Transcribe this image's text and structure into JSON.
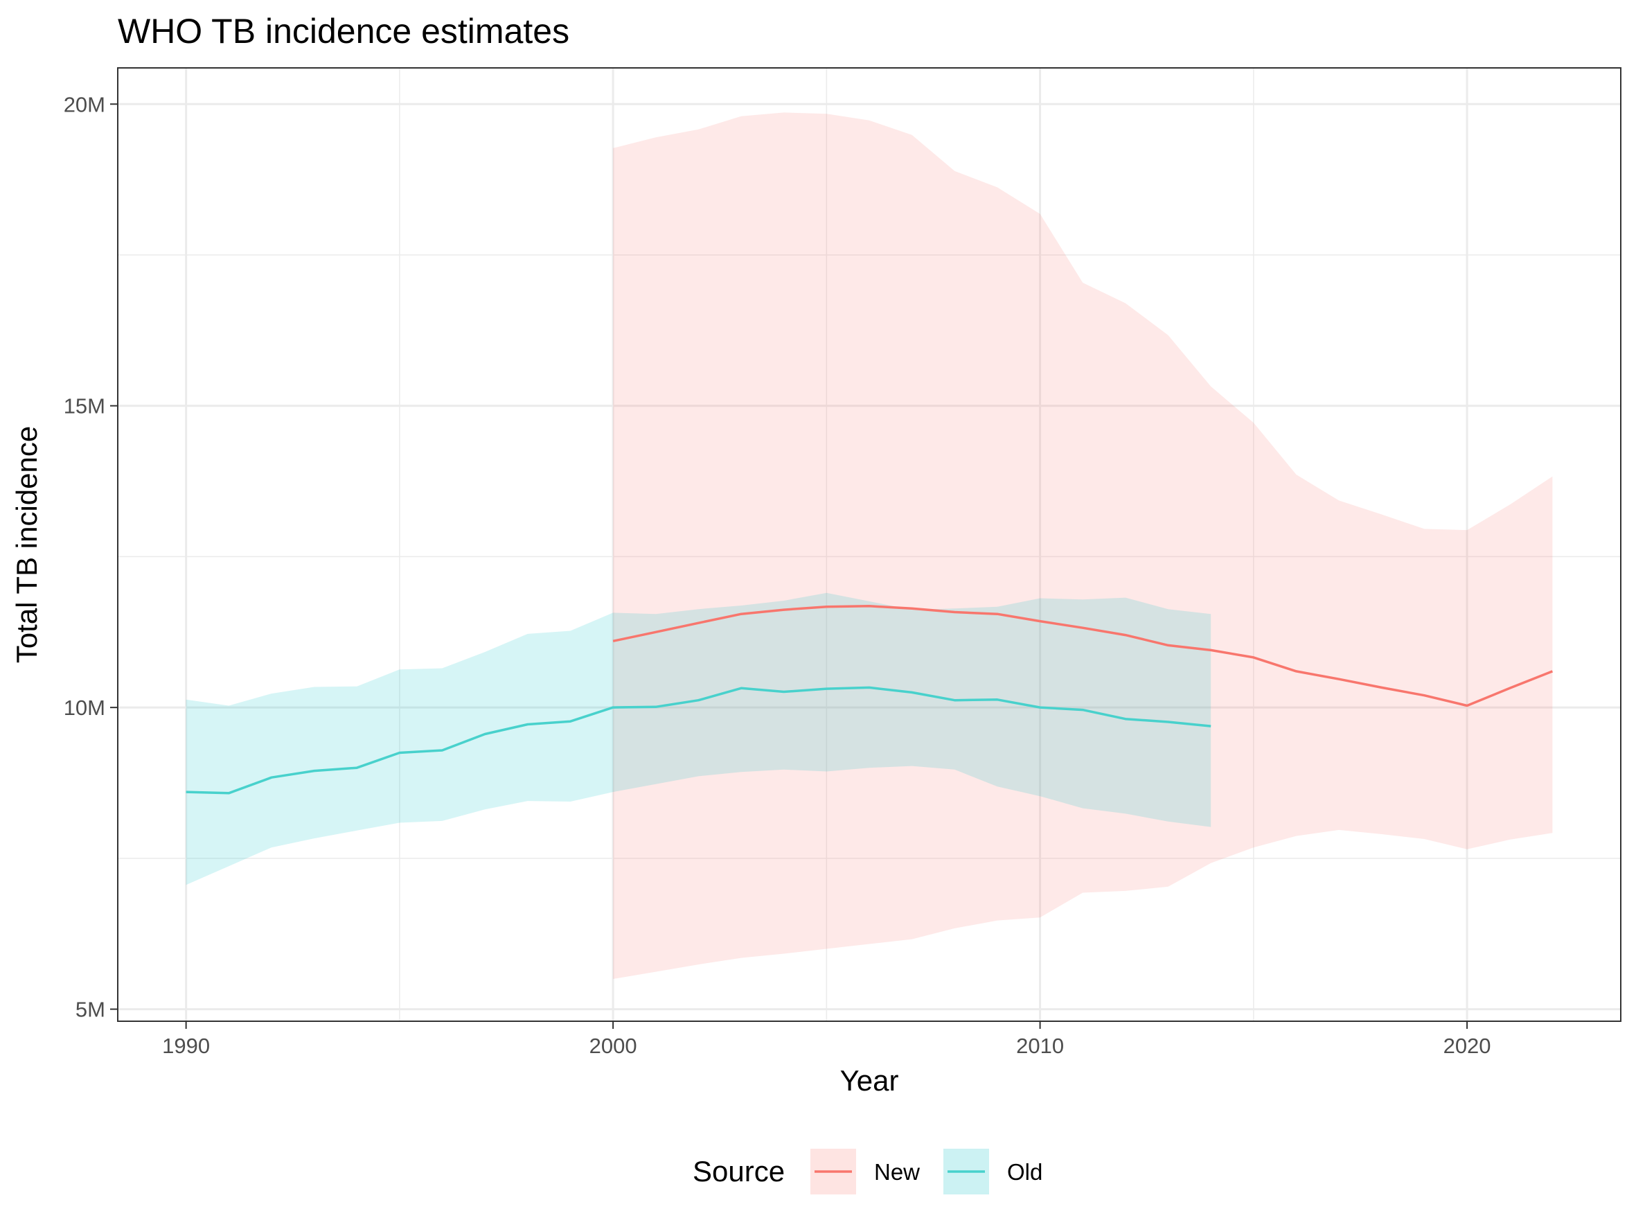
{
  "chart_data": {
    "type": "line",
    "title": "WHO TB incidence estimates",
    "xlabel": "Year",
    "ylabel": "Total TB incidence",
    "xlim": [
      1988.4,
      2023.6
    ],
    "ylim": [
      4800000,
      20600000
    ],
    "x_ticks": [
      {
        "value": 1990,
        "label": "1990"
      },
      {
        "value": 2000,
        "label": "2000"
      },
      {
        "value": 2010,
        "label": "2010"
      },
      {
        "value": 2020,
        "label": "2020"
      }
    ],
    "x_minor": [
      1995,
      2005,
      2015
    ],
    "y_ticks": [
      {
        "value": 5000000,
        "label": "5M"
      },
      {
        "value": 10000000,
        "label": "10M"
      },
      {
        "value": 15000000,
        "label": "15M"
      },
      {
        "value": 20000000,
        "label": "20M"
      }
    ],
    "y_minor": [
      7500000,
      12500000,
      17500000
    ],
    "grid": true,
    "legend": {
      "title": "Source",
      "position": "bottom"
    },
    "series": [
      {
        "name": "New",
        "color": "#F8766D",
        "line_color": "#F8766D",
        "x": [
          2000,
          2001,
          2002,
          2003,
          2004,
          2005,
          2006,
          2007,
          2008,
          2009,
          2010,
          2011,
          2012,
          2013,
          2014,
          2015,
          2016,
          2017,
          2018,
          2019,
          2020,
          2021,
          2022
        ],
        "y": [
          11100000,
          11250000,
          11400000,
          11550000,
          11620000,
          11670000,
          11680000,
          11640000,
          11580000,
          11550000,
          11430000,
          11320000,
          11200000,
          11030000,
          10950000,
          10830000,
          10600000,
          10470000,
          10330000,
          10200000,
          10030000,
          10320000,
          10600000
        ],
        "lower": [
          5500000,
          5620000,
          5740000,
          5850000,
          5920000,
          6000000,
          6080000,
          6160000,
          6340000,
          6470000,
          6520000,
          6930000,
          6960000,
          7030000,
          7420000,
          7680000,
          7870000,
          7970000,
          7900000,
          7820000,
          7650000,
          7810000,
          7920000
        ],
        "upper": [
          19270000,
          19450000,
          19580000,
          19800000,
          19860000,
          19840000,
          19730000,
          19490000,
          18890000,
          18620000,
          18180000,
          17040000,
          16700000,
          16170000,
          15320000,
          14720000,
          13860000,
          13430000,
          13200000,
          12960000,
          12940000,
          13360000,
          13830000
        ]
      },
      {
        "name": "Old",
        "color": "#00BFC4",
        "line_color": "#48D1CC",
        "x": [
          1990,
          1991,
          1992,
          1993,
          1994,
          1995,
          1996,
          1997,
          1998,
          1999,
          2000,
          2001,
          2002,
          2003,
          2004,
          2005,
          2006,
          2007,
          2008,
          2009,
          2010,
          2011,
          2012,
          2013,
          2014
        ],
        "y": [
          8600000,
          8580000,
          8840000,
          8950000,
          9000000,
          9250000,
          9290000,
          9560000,
          9720000,
          9770000,
          10000000,
          10010000,
          10120000,
          10320000,
          10260000,
          10310000,
          10330000,
          10250000,
          10120000,
          10130000,
          10000000,
          9960000,
          9810000,
          9760000,
          9690000
        ],
        "lower": [
          7060000,
          7370000,
          7680000,
          7830000,
          7960000,
          8090000,
          8120000,
          8310000,
          8450000,
          8440000,
          8600000,
          8730000,
          8860000,
          8930000,
          8970000,
          8940000,
          9000000,
          9030000,
          8970000,
          8690000,
          8530000,
          8330000,
          8240000,
          8110000,
          8020000
        ],
        "upper": [
          10130000,
          10030000,
          10230000,
          10340000,
          10350000,
          10630000,
          10650000,
          10920000,
          11220000,
          11270000,
          11570000,
          11550000,
          11630000,
          11690000,
          11770000,
          11900000,
          11760000,
          11620000,
          11640000,
          11670000,
          11810000,
          11790000,
          11820000,
          11630000,
          11550000
        ]
      }
    ]
  }
}
